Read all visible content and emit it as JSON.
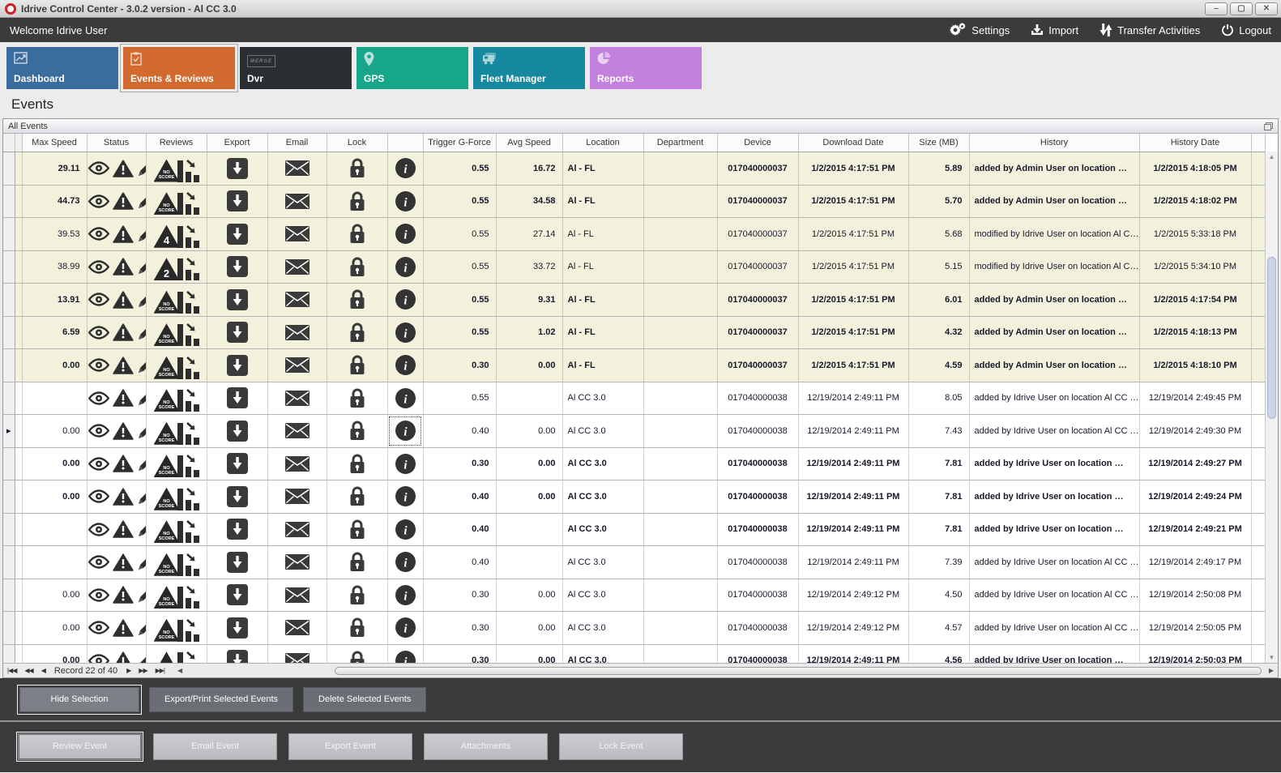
{
  "window": {
    "title": "Idrive Control Center - 3.0.2 version - Al CC 3.0",
    "controls": {
      "minimize": "–",
      "maximize": "▢",
      "close": "✕"
    }
  },
  "topbar": {
    "welcome": "Welcome Idrive User",
    "actions": [
      {
        "label": "Settings",
        "icon": "gears-icon"
      },
      {
        "label": "Import",
        "icon": "import-download-icon"
      },
      {
        "label": "Transfer Activities",
        "icon": "transfer-arrows-icon"
      },
      {
        "label": "Logout",
        "icon": "power-icon"
      }
    ]
  },
  "tabs": [
    {
      "label": "Dashboard",
      "icon": "chart-icon",
      "color": "#3a6c9e",
      "selected": false
    },
    {
      "label": "Events & Reviews",
      "icon": "checklist-icon",
      "color": "#d2692f",
      "selected": true
    },
    {
      "label": "Dvr",
      "icon": "merge-logo-icon",
      "icon_text": "MERGE",
      "color": "#2b2e33",
      "selected": false
    },
    {
      "label": "GPS",
      "icon": "map-pin-icon",
      "color": "#17a689",
      "selected": false
    },
    {
      "label": "Fleet Manager",
      "icon": "vehicles-icon",
      "color": "#1689a0",
      "selected": false
    },
    {
      "label": "Reports",
      "icon": "pie-chart-icon",
      "color": "#c480dd",
      "selected": false
    }
  ],
  "page_title": "Events",
  "panel": {
    "title": "All Events",
    "corner_icon": "restore-window-icon"
  },
  "table": {
    "columns": [
      "",
      "",
      "Max Speed",
      "Status",
      "Reviews",
      "Export",
      "Email",
      "Lock",
      "",
      "Trigger G-Force",
      "Avg Speed",
      "Location",
      "Department",
      "Device",
      "Download Date",
      "Size (MB)",
      "History",
      "History Date",
      ""
    ],
    "row_icons": {
      "export": "download-square-icon",
      "email": "envelope-icon",
      "lock": "padlock-icon",
      "info": "info-circle-icon"
    },
    "rows": [
      {
        "id_digit": "2",
        "max_speed": "29.11",
        "status": "eye",
        "review": "NO SCORE",
        "trigger": "0.55",
        "avg_speed": "16.72",
        "location": "Al - FL",
        "department": "",
        "device": "017040000037",
        "download_date": "1/2/2015 4:17:51 PM",
        "size": "5.89",
        "history": "added by Admin User on location …",
        "history_date": "1/2/2015 4:18:05 PM",
        "bold": true,
        "highlighted": true,
        "selected": false
      },
      {
        "id_digit": "5",
        "max_speed": "44.73",
        "status": "eye",
        "review": "NO SCORE",
        "trigger": "0.55",
        "avg_speed": "34.58",
        "location": "Al - FL",
        "department": "",
        "device": "017040000037",
        "download_date": "1/2/2015 4:17:51 PM",
        "size": "5.70",
        "history": "added by Admin User on location …",
        "history_date": "1/2/2015 4:18:02 PM",
        "bold": true,
        "highlighted": true,
        "selected": false
      },
      {
        "id_digit": "4",
        "max_speed": "39.53",
        "status": "warning",
        "review": "4",
        "trigger": "0.55",
        "avg_speed": "27.14",
        "location": "Al - FL",
        "department": "",
        "device": "017040000037",
        "download_date": "1/2/2015 4:17:51 PM",
        "size": "5.68",
        "history": "modified by Idrive User on location Al C…",
        "history_date": "1/2/2015 5:33:18 PM",
        "bold": false,
        "highlighted": true,
        "selected": false
      },
      {
        "id_digit": "9",
        "max_speed": "38.99",
        "status": "pencil",
        "review": "2",
        "trigger": "0.55",
        "avg_speed": "33.72",
        "location": "Al - FL",
        "department": "",
        "device": "017040000037",
        "download_date": "1/2/2015 4:17:51 PM",
        "size": "5.15",
        "history": "modified by Idrive User on location Al C…",
        "history_date": "1/2/2015 5:34:10 PM",
        "bold": false,
        "highlighted": true,
        "selected": false
      },
      {
        "id_digit": "5",
        "max_speed": "13.91",
        "status": "image",
        "review": "NO SCORE",
        "trigger": "0.55",
        "avg_speed": "9.31",
        "location": "Al - FL",
        "department": "",
        "device": "017040000037",
        "download_date": "1/2/2015 4:17:51 PM",
        "size": "6.01",
        "history": "added by Admin User on location …",
        "history_date": "1/2/2015 4:17:54 PM",
        "bold": true,
        "highlighted": true,
        "selected": false
      },
      {
        "id_digit": "0",
        "max_speed": "6.59",
        "status": "image",
        "review": "NO SCORE",
        "trigger": "0.55",
        "avg_speed": "1.02",
        "location": "Al - FL",
        "department": "",
        "device": "017040000037",
        "download_date": "1/2/2015 4:17:51 PM",
        "size": "4.32",
        "history": "added by Admin User on location …",
        "history_date": "1/2/2015 4:18:13 PM",
        "bold": true,
        "highlighted": true,
        "selected": false
      },
      {
        "id_digit": "0",
        "max_speed": "0.00",
        "status": "image",
        "review": "NO SCORE",
        "trigger": "0.30",
        "avg_speed": "0.00",
        "location": "Al - FL",
        "department": "",
        "device": "017040000037",
        "download_date": "1/2/2015 4:17:51 PM",
        "size": "4.59",
        "history": "added by Admin User on location …",
        "history_date": "1/2/2015 4:18:10 PM",
        "bold": true,
        "highlighted": true,
        "selected": false
      },
      {
        "id_digit": "5",
        "max_speed": "",
        "status": "eye",
        "review": "NO SCORE",
        "trigger": "0.55",
        "avg_speed": "",
        "location": "Al CC 3.0",
        "department": "",
        "device": "017040000038",
        "download_date": "12/19/2014 2:49:11 PM",
        "size": "8.05",
        "history": "added by Idrive User on location Al CC …",
        "history_date": "12/19/2014 2:49:45 PM",
        "bold": false,
        "highlighted": false,
        "selected": false
      },
      {
        "id_digit": "7",
        "max_speed": "0.00",
        "status": "eye",
        "review": "NO SCORE",
        "trigger": "0.40",
        "avg_speed": "0.00",
        "location": "Al CC 3.0",
        "department": "",
        "device": "017040000038",
        "download_date": "12/19/2014 2:49:11 PM",
        "size": "7.43",
        "history": "added by Idrive User on location Al CC …",
        "history_date": "12/19/2014 2:49:30 PM",
        "bold": false,
        "highlighted": false,
        "selected": true
      },
      {
        "id_digit": "7",
        "max_speed": "0.00",
        "status": "image",
        "review": "NO SCORE",
        "trigger": "0.30",
        "avg_speed": "0.00",
        "location": "Al CC 3.0",
        "department": "",
        "device": "017040000038",
        "download_date": "12/19/2014 2:49:11 PM",
        "size": "7.81",
        "history": "added by Idrive User on location …",
        "history_date": "12/19/2014 2:49:27 PM",
        "bold": true,
        "highlighted": false,
        "selected": false
      },
      {
        "id_digit": "5",
        "max_speed": "0.00",
        "status": "image",
        "review": "NO SCORE",
        "trigger": "0.40",
        "avg_speed": "0.00",
        "location": "Al CC 3.0",
        "department": "",
        "device": "017040000038",
        "download_date": "12/19/2014 2:49:11 PM",
        "size": "7.81",
        "history": "added by Idrive User on location …",
        "history_date": "12/19/2014 2:49:24 PM",
        "bold": true,
        "highlighted": false,
        "selected": false
      },
      {
        "id_digit": "8",
        "max_speed": "",
        "status": "image",
        "review": "NO SCORE",
        "trigger": "0.40",
        "avg_speed": "",
        "location": "Al CC 3.0",
        "department": "",
        "device": "017040000038",
        "download_date": "12/19/2014 2:49:11 PM",
        "size": "7.81",
        "history": "added by Idrive User on location …",
        "history_date": "12/19/2014 2:49:21 PM",
        "bold": true,
        "highlighted": false,
        "selected": false
      },
      {
        "id_digit": "5",
        "max_speed": "",
        "status": "eye",
        "review": "NO SCORE",
        "trigger": "0.40",
        "avg_speed": "",
        "location": "Al CC 3.0",
        "department": "",
        "device": "017040000038",
        "download_date": "12/19/2014 2:49:11 PM",
        "size": "7.39",
        "history": "added by Idrive User on location Al CC …",
        "history_date": "12/19/2014 2:49:17 PM",
        "bold": false,
        "highlighted": false,
        "selected": false
      },
      {
        "id_digit": "5",
        "max_speed": "0.00",
        "status": "eye",
        "review": "NO SCORE",
        "trigger": "0.30",
        "avg_speed": "0.00",
        "location": "Al CC 3.0",
        "department": "",
        "device": "017040000038",
        "download_date": "12/19/2014 2:49:12 PM",
        "size": "4.50",
        "history": "added by Idrive User on location Al CC …",
        "history_date": "12/19/2014 2:50:08 PM",
        "bold": false,
        "highlighted": false,
        "selected": false
      },
      {
        "id_digit": "8",
        "max_speed": "0.00",
        "status": "eye",
        "review": "NO SCORE",
        "trigger": "0.30",
        "avg_speed": "0.00",
        "location": "Al CC 3.0",
        "department": "",
        "device": "017040000038",
        "download_date": "12/19/2014 2:49:12 PM",
        "size": "4.57",
        "history": "added by Idrive User on location Al CC …",
        "history_date": "12/19/2014 2:50:05 PM",
        "bold": false,
        "highlighted": false,
        "selected": false
      },
      {
        "id_digit": "5",
        "max_speed": "0.00",
        "status": "image",
        "review": "NO SCORE",
        "trigger": "0.30",
        "avg_speed": "0.00",
        "location": "Al CC 3.0",
        "department": "",
        "device": "017040000038",
        "download_date": "12/19/2014 2:49:11 PM",
        "size": "4.56",
        "history": "added by Idrive User on location …",
        "history_date": "12/19/2014 2:50:03 PM",
        "bold": true,
        "highlighted": false,
        "selected": false
      }
    ]
  },
  "record_nav": {
    "label": "Record 22 of 40",
    "first": "|◀◀",
    "prev_page": "◀◀",
    "prev": "◀",
    "next": "▶",
    "next_page": "▶▶",
    "last": "▶▶|"
  },
  "selection_buttons": [
    {
      "label": "Hide Selection",
      "focused": true
    },
    {
      "label": "Export/Print Selected Events",
      "focused": false
    },
    {
      "label": "Delete Selected  Events",
      "focused": false
    }
  ],
  "event_buttons": [
    {
      "label": "Review Event",
      "focused": true
    },
    {
      "label": "Email Event",
      "focused": false
    },
    {
      "label": "Export Event",
      "focused": false
    },
    {
      "label": "Attachments",
      "focused": false
    },
    {
      "label": "Lock Event",
      "focused": false
    }
  ],
  "colors": {
    "welcome_bar": "#3b3b3b",
    "highlight_row": "#f2f2dc",
    "tab_dashboard": "#3a6c9e",
    "tab_events": "#d2692f",
    "tab_dvr": "#2b2e33",
    "tab_gps": "#17a689",
    "tab_fleet": "#1689a0",
    "tab_reports": "#c480dd",
    "app_icon_red": "#cc2027",
    "icon_dark": "#2e2e2e"
  }
}
